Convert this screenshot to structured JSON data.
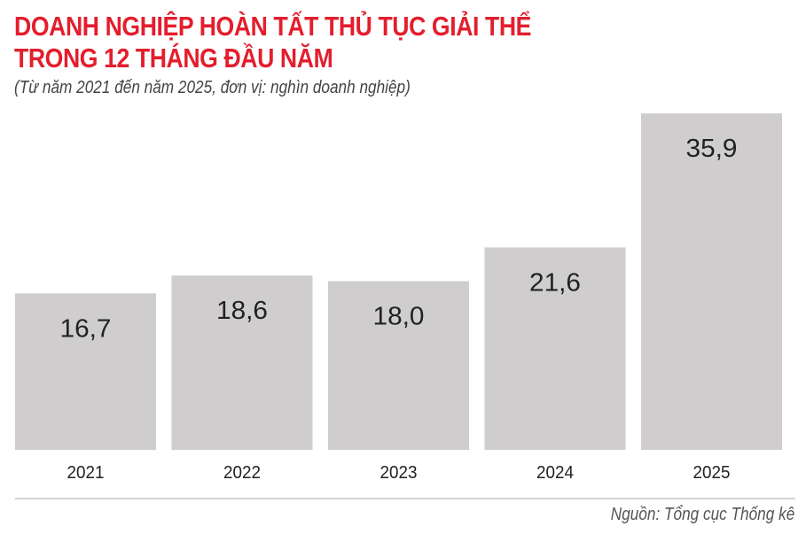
{
  "chart_data": {
    "type": "bar",
    "title": "DOANH NGHIỆP HOÀN TẤT THỦ TỤC GIẢI THỂ TRONG 12 THÁNG ĐẦU NĂM",
    "title_lines": [
      "DOANH NGHIỆP HOÀN TẤT THỦ TỤC GIẢI THỂ",
      "TRONG 12 THÁNG ĐẦU NĂM"
    ],
    "subtitle": "(Từ năm 2021 đến năm 2025, đơn vị: nghìn doanh nghiệp)",
    "categories": [
      "2021",
      "2022",
      "2023",
      "2024",
      "2025"
    ],
    "values": [
      16.7,
      18.6,
      18.0,
      21.6,
      35.9
    ],
    "value_labels": [
      "16,7",
      "18,6",
      "18,0",
      "21,6",
      "35,9"
    ],
    "xlabel": "",
    "ylabel": "",
    "ylim": [
      0,
      48
    ],
    "grid": false,
    "bar_color": "#cfcdce",
    "title_color": "#e31e2d"
  },
  "source": "Nguồn: Tổng cục Thống kê"
}
